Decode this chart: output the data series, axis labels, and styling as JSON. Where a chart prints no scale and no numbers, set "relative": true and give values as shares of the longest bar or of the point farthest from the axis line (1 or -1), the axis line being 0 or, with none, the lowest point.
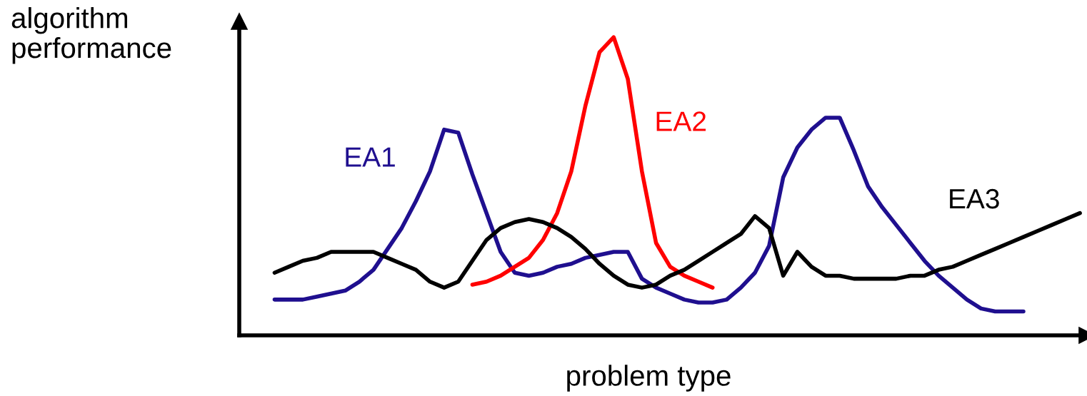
{
  "chart_data": {
    "type": "line",
    "relative": true,
    "xlabel": "problem type",
    "ylabel": "algorithm\nperformance",
    "categories": [
      null,
      null,
      null,
      null,
      null,
      null,
      null,
      null,
      null,
      null,
      null,
      null,
      null,
      null,
      null,
      null,
      null,
      null,
      null,
      null,
      null,
      null,
      null,
      null,
      null,
      null,
      null,
      null,
      null,
      null,
      null,
      null,
      null,
      null,
      null,
      null,
      null,
      null,
      null,
      null,
      null,
      null,
      null,
      null,
      null,
      null,
      null,
      null,
      null,
      null,
      null,
      null,
      null,
      null,
      null,
      null,
      null,
      null
    ],
    "series": [
      {
        "name": "EA1",
        "color": "#1f0f8f",
        "values": [
          0.12,
          0.12,
          0.12,
          0.13,
          0.14,
          0.15,
          0.18,
          0.22,
          0.29,
          0.36,
          0.45,
          0.55,
          0.69,
          0.68,
          0.54,
          0.41,
          0.28,
          0.21,
          0.2,
          0.21,
          0.23,
          0.24,
          0.26,
          0.27,
          0.28,
          0.28,
          0.19,
          0.16,
          0.14,
          0.12,
          0.11,
          0.11,
          0.12,
          0.16,
          0.21,
          0.3,
          0.53,
          0.63,
          0.69,
          0.73,
          0.73,
          0.62,
          0.5,
          0.43,
          0.37,
          0.31,
          0.25,
          0.2,
          0.16,
          0.12,
          0.09,
          0.08,
          0.08,
          0.08,
          null,
          null,
          null,
          null
        ]
      },
      {
        "name": "EA2",
        "color": "#ff0000",
        "values": [
          null,
          null,
          null,
          null,
          null,
          null,
          null,
          null,
          null,
          null,
          null,
          null,
          null,
          null,
          0.17,
          0.18,
          0.2,
          0.23,
          0.26,
          0.32,
          0.41,
          0.55,
          0.77,
          0.95,
          1,
          0.86,
          0.55,
          0.31,
          0.23,
          0.2,
          0.18,
          0.16,
          null,
          null,
          null,
          null,
          null,
          null,
          null,
          null,
          null,
          null,
          null,
          null,
          null,
          null,
          null,
          null,
          null,
          null,
          null,
          null,
          null,
          null,
          null,
          null,
          null,
          null
        ]
      },
      {
        "name": "EA3",
        "color": "#000000",
        "values": [
          0.21,
          0.23,
          0.25,
          0.26,
          0.28,
          0.28,
          0.28,
          0.28,
          0.26,
          0.24,
          0.22,
          0.18,
          0.16,
          0.18,
          0.25,
          0.32,
          0.36,
          0.38,
          0.39,
          0.38,
          0.36,
          0.33,
          0.29,
          0.24,
          0.2,
          0.17,
          0.16,
          0.17,
          0.2,
          0.22,
          0.25,
          0.28,
          0.31,
          0.34,
          0.4,
          0.36,
          0.2,
          0.28,
          0.23,
          0.2,
          0.2,
          0.19,
          0.19,
          0.19,
          0.19,
          0.2,
          0.2,
          0.22,
          0.23,
          0.25,
          0.27,
          0.29,
          0.31,
          0.33,
          0.35,
          0.37,
          0.39,
          0.41
        ]
      }
    ]
  }
}
